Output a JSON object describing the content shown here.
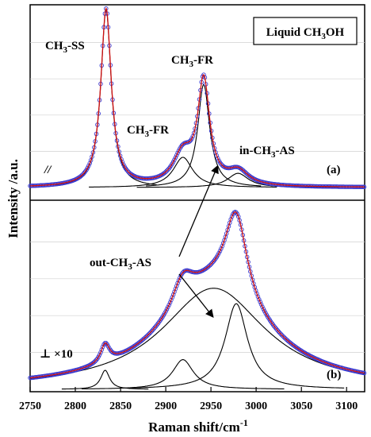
{
  "chart_data": {
    "type": "line",
    "xlabel": "Raman shift/cm",
    "xlabel_sup": "-1",
    "ylabel": "Intensity /a.u.",
    "xlim": [
      2750,
      3120
    ],
    "x_ticks": [
      2750,
      2800,
      2850,
      2900,
      2950,
      3000,
      3050,
      3100
    ],
    "x_tick_labels": [
      "2750",
      "2800",
      "2850",
      "2900",
      "2950",
      "3000",
      "3050",
      "3100"
    ],
    "colors": {
      "measured": "#3a3ad0",
      "fit_total": "#d01010",
      "components": "#000000"
    },
    "legend_box": {
      "prefix": "Liquid CH",
      "sub": "3",
      "suffix": "OH"
    },
    "annotations": {
      "ss": {
        "prefix": "CH",
        "sub": "3",
        "suffix": "-SS"
      },
      "fr_left": {
        "prefix": "CH",
        "sub": "3",
        "suffix": "-FR"
      },
      "fr_right": {
        "prefix": "CH",
        "sub": "3",
        "suffix": "-FR"
      },
      "in_as": {
        "prefix": "in-CH",
        "sub": "3",
        "suffix": "-AS"
      },
      "out_as": {
        "prefix": "out-CH",
        "sub": "3",
        "suffix": "-AS"
      },
      "break_mark": "//",
      "perp_scale": "⊥ ×10"
    },
    "panels": [
      {
        "label": "(a)",
        "title": "",
        "components": [
          {
            "center": 2834,
            "width": 7,
            "height": 1.0
          },
          {
            "center": 2919,
            "width": 13,
            "height": 0.17
          },
          {
            "center": 2942,
            "width": 8,
            "height": 0.58
          },
          {
            "center": 2980,
            "width": 14,
            "height": 0.08
          }
        ],
        "ylim": [
          0,
          1.02
        ]
      },
      {
        "label": "(b)",
        "title": "",
        "components": [
          {
            "center": 2833,
            "width": 6,
            "height": 0.16
          },
          {
            "center": 2919,
            "width": 14,
            "height": 0.25
          },
          {
            "center": 2953,
            "width": 70,
            "height": 0.85
          },
          {
            "center": 2978,
            "width": 15,
            "height": 0.72
          }
        ],
        "ylim": [
          0,
          1.55
        ]
      }
    ]
  }
}
